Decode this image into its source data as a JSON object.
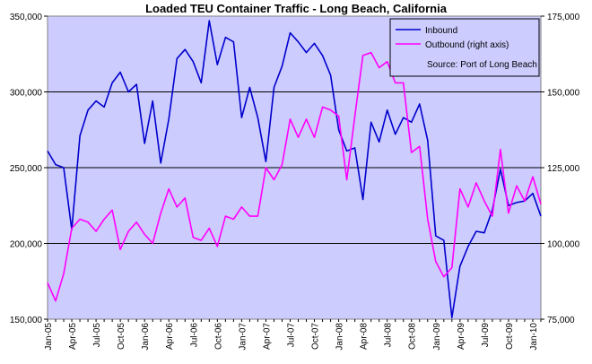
{
  "chart_data": {
    "type": "line",
    "title": "Loaded TEU Container Traffic - Long Beach, California",
    "source_note": "Source: Port of Long Beach",
    "x_start": "2005-01",
    "x_end": "2010-01",
    "x_tick_labels": [
      "Jan-05",
      "Apr-05",
      "Jul-05",
      "Oct-05",
      "Jan-06",
      "Apr-06",
      "Jul-06",
      "Oct-06",
      "Jan-07",
      "Apr-07",
      "Jul-07",
      "Oct-07",
      "Jan-08",
      "Apr-08",
      "Jul-08",
      "Oct-08",
      "Jan-09",
      "Apr-09",
      "Jul-09",
      "Oct-09",
      "Jan-10"
    ],
    "y_left": {
      "min": 150000,
      "max": 350000,
      "ticks": [
        "150,000",
        "200,000",
        "250,000",
        "300,000",
        "350,000"
      ]
    },
    "y_right": {
      "min": 75000,
      "max": 175000,
      "ticks": [
        "75,000",
        "100,000",
        "125,000",
        "150,000",
        "175,000"
      ]
    },
    "grid": "horizontal",
    "legend_position": "top-right",
    "series": [
      {
        "name": "Inbound",
        "axis": "left",
        "color": "#0000cc",
        "values": [
          261000,
          252000,
          250000,
          209000,
          271000,
          288000,
          294000,
          290000,
          306000,
          313000,
          300000,
          305000,
          266000,
          294000,
          253000,
          282000,
          322000,
          328000,
          320000,
          306000,
          347000,
          318000,
          336000,
          333000,
          283000,
          303000,
          283000,
          254000,
          303000,
          317000,
          339000,
          333000,
          326000,
          332000,
          324000,
          311000,
          275000,
          261000,
          263000,
          229000,
          280000,
          267000,
          288000,
          272000,
          283000,
          280000,
          292000,
          268000,
          205000,
          202000,
          151000,
          185000,
          198000,
          208000,
          207000,
          222000,
          249000,
          225000,
          227000,
          228000,
          233000,
          218000
        ]
      },
      {
        "name": "Outbound (right axis)",
        "axis": "right",
        "color": "#ff00ff",
        "values": [
          87000,
          81000,
          90000,
          105000,
          108000,
          107000,
          104000,
          108000,
          111000,
          98000,
          104000,
          107000,
          103000,
          100000,
          110000,
          118000,
          112000,
          115000,
          102000,
          101000,
          105000,
          99000,
          109000,
          108000,
          112000,
          109000,
          109000,
          125000,
          121000,
          126000,
          141000,
          135000,
          141000,
          135000,
          145000,
          144000,
          142000,
          121000,
          142000,
          162000,
          163000,
          158000,
          160000,
          153000,
          153000,
          130000,
          132000,
          108000,
          94000,
          89000,
          92000,
          118000,
          112000,
          120000,
          114000,
          109000,
          131000,
          110000,
          119000,
          114000,
          122000,
          113000
        ]
      }
    ]
  }
}
